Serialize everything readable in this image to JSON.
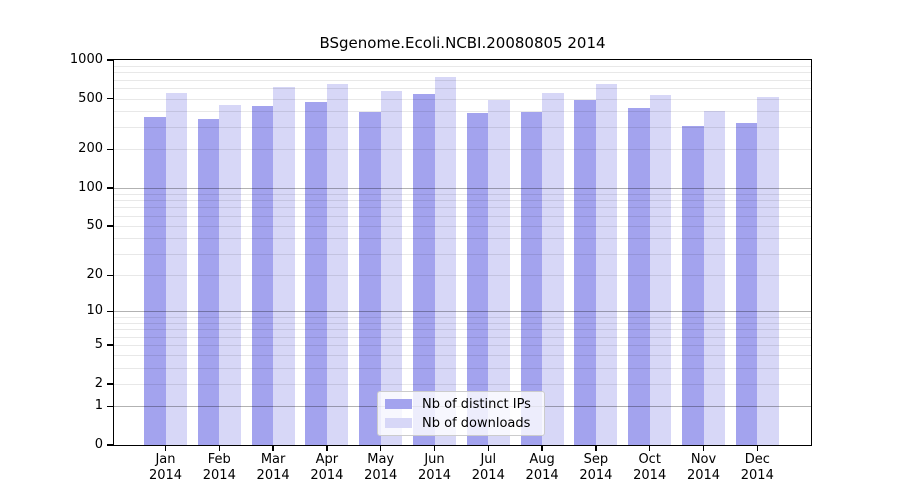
{
  "chart_data": {
    "type": "bar",
    "title": "BSgenome.Ecoli.NCBI.20080805 2014",
    "categories": [
      "Jan 2014",
      "Feb 2014",
      "Mar 2014",
      "Apr 2014",
      "May 2014",
      "Jun 2014",
      "Jul 2014",
      "Aug 2014",
      "Sep 2014",
      "Oct 2014",
      "Nov 2014",
      "Dec 2014"
    ],
    "x_tick_months": [
      "Jan",
      "Feb",
      "Mar",
      "Apr",
      "May",
      "Jun",
      "Jul",
      "Aug",
      "Sep",
      "Oct",
      "Nov",
      "Dec"
    ],
    "x_tick_year": "2014",
    "series": [
      {
        "name": "Nb of distinct IPs",
        "color": "#a3a3ee",
        "values": [
          360,
          345,
          435,
          470,
          390,
          540,
          385,
          395,
          490,
          420,
          305,
          320
        ]
      },
      {
        "name": "Nb of downloads",
        "color": "#d7d7f7",
        "values": [
          550,
          445,
          615,
          650,
          570,
          740,
          490,
          550,
          650,
          535,
          400,
          515
        ]
      }
    ],
    "y_axis": {
      "scale": "log(value+1)",
      "range": [
        0,
        1000
      ],
      "ticks": [
        1000,
        500,
        200,
        100,
        50,
        20,
        10,
        5,
        2,
        1,
        0
      ]
    },
    "grid": "on",
    "legend_position": "inside-bottom-center"
  }
}
